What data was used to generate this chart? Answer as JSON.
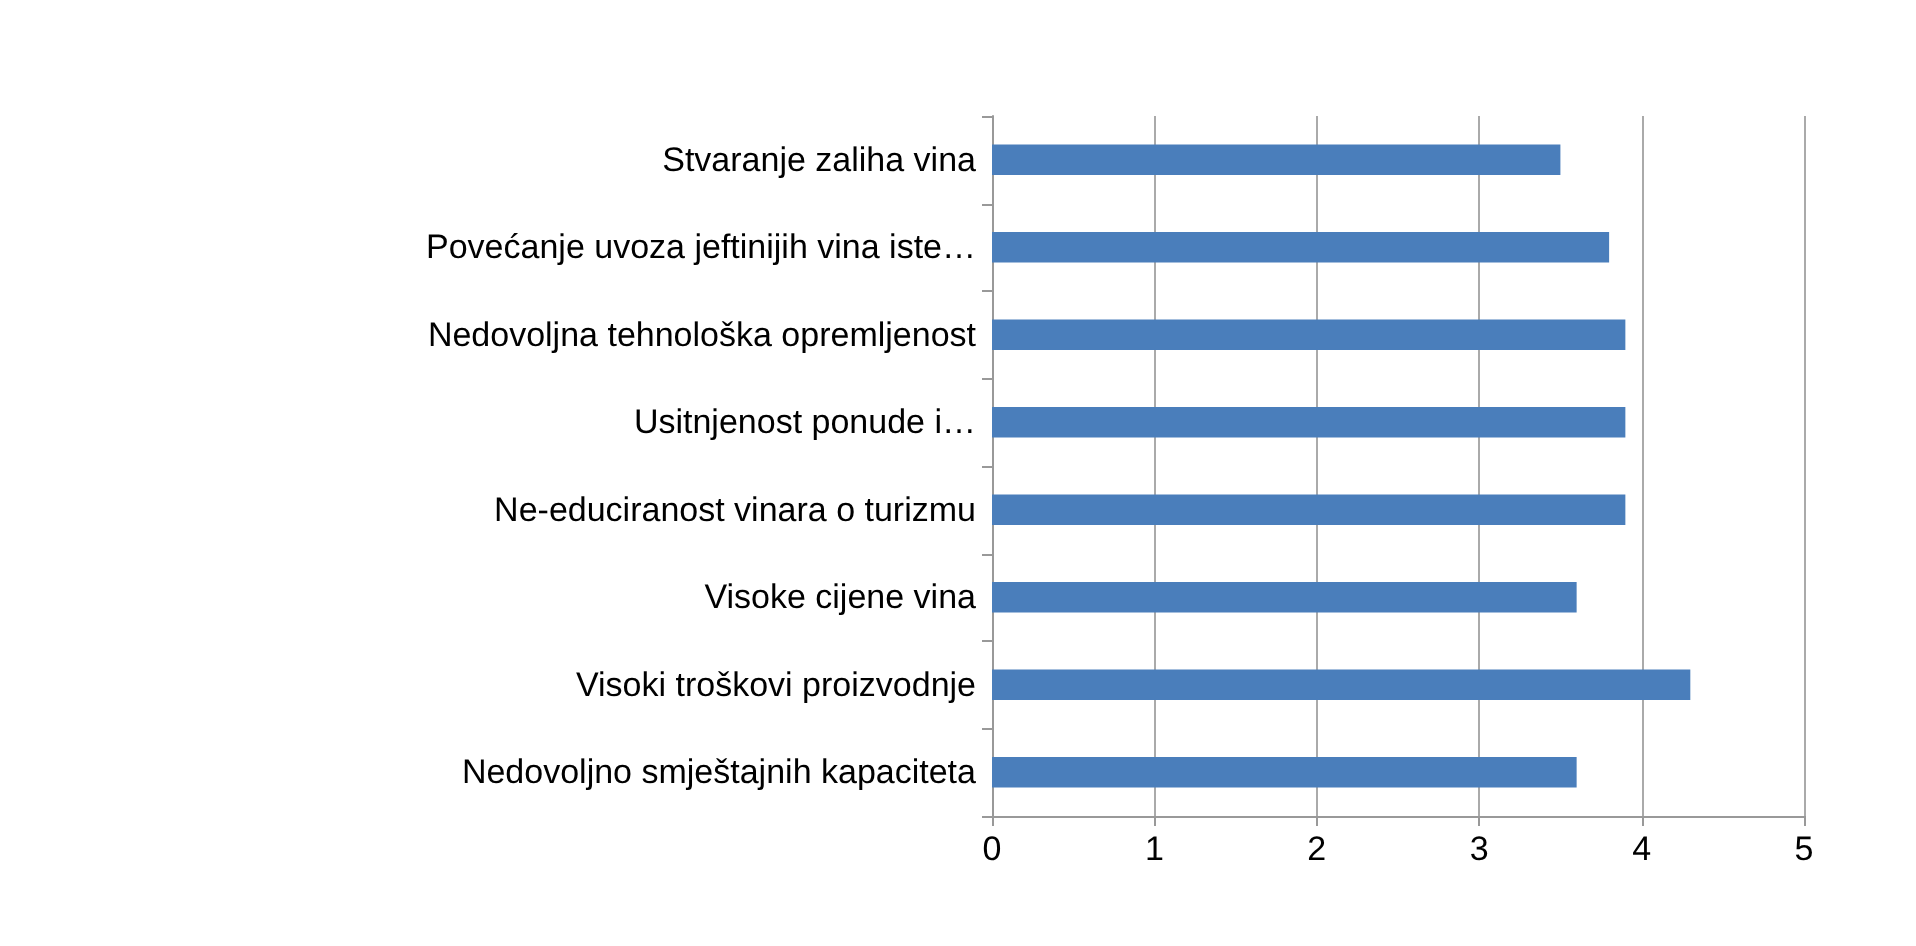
{
  "chart_data": {
    "type": "bar",
    "orientation": "horizontal",
    "categories": [
      "Stvaranje zaliha vina",
      "Povećanje uvoza jeftinijih vina iste…",
      "Nedovoljna tehnološka opremljenost",
      "Usitnjenost ponude i…",
      "Ne-educiranost vinara o turizmu",
      "Visoke cijene vina",
      "Visoki troškovi proizvodnje",
      "Nedovoljno smještajnih kapaciteta"
    ],
    "values": [
      3.5,
      3.8,
      3.9,
      3.9,
      3.9,
      3.6,
      4.3,
      3.6
    ],
    "color": "#4a7ebb",
    "xlim": [
      0,
      5
    ],
    "xticks": [
      0,
      1,
      2,
      3,
      4,
      5
    ],
    "grid": "x"
  }
}
